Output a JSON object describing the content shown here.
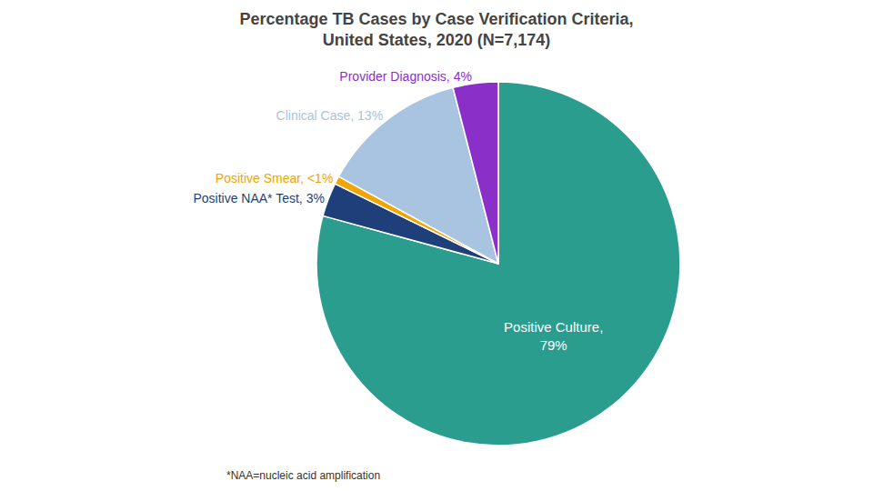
{
  "chart_data": {
    "type": "pie",
    "title": "Percentage TB Cases by Case Verification Criteria,\nUnited States, 2020 (N=7,174)",
    "categories": [
      "Positive Culture,\n79%",
      "Positive NAA* Test, 3%",
      "Positive Smear, <1%",
      "Clinical Case, 13%",
      "Provider Diagnosis, 4%"
    ],
    "values": [
      79,
      3,
      0.7,
      13,
      4
    ],
    "colors": [
      "#2a9d8f",
      "#1e3f7a",
      "#f0a500",
      "#a8c4e0",
      "#8b2fc9"
    ],
    "annotations": [
      "*NAA=nucleic acid amplification"
    ],
    "data_labels": true
  }
}
